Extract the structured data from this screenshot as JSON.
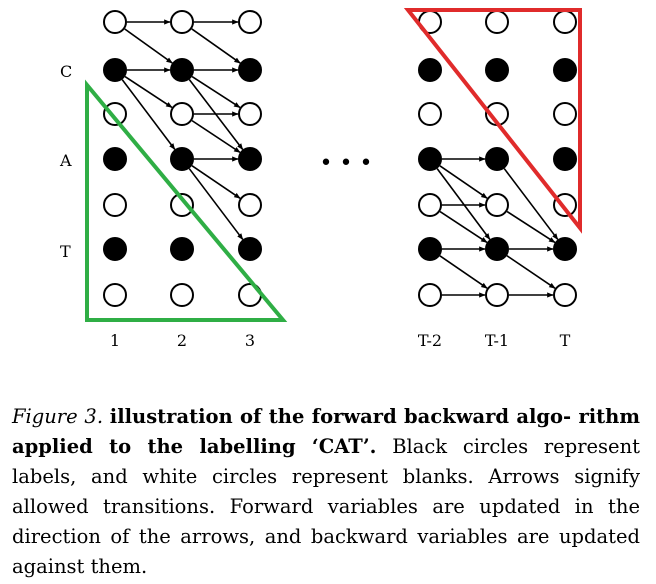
{
  "figure": {
    "row_labels": [
      "C",
      "A",
      "T"
    ],
    "column_labels": [
      "1",
      "2",
      "3",
      "T-2",
      "T-1",
      "T"
    ],
    "ellipsis": "•   •   •",
    "legend": {
      "label_node_color": "#000000",
      "blank_node_color": "#ffffff",
      "forward_region_color": "#e02b2b",
      "backward_region_color": "#2fae45"
    }
  },
  "caption": {
    "figure_number": "Figure 3.",
    "title": "illustration of the forward backward algo- rithm applied to the labelling ‘CAT’.",
    "body": "Black circles represent labels, and white circles represent blanks. Arrows signify allowed transitions. Forward variables are updated in the direction of the arrows, and backward variables are updated against them."
  }
}
